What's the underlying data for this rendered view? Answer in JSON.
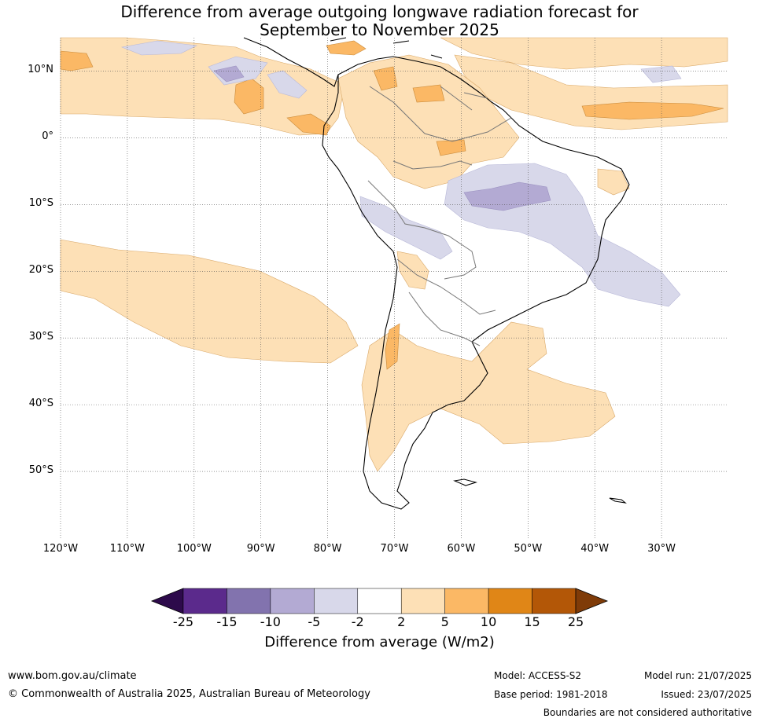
{
  "title": {
    "line1": "Difference from average outgoing longwave radiation forecast for",
    "line2": "September to November 2025"
  },
  "map": {
    "lon_range": [
      -120,
      -20
    ],
    "lat_range": [
      -60,
      15
    ],
    "lat_labels": [
      "10°N",
      "0°",
      "10°S",
      "20°S",
      "30°S",
      "40°S",
      "50°S"
    ],
    "lon_labels": [
      "120°W",
      "110°W",
      "100°W",
      "90°W",
      "80°W",
      "70°W",
      "60°W",
      "50°W",
      "40°W",
      "30°W"
    ],
    "gridlines": "dotted"
  },
  "colorbar": {
    "title": "Difference from average (W/m2)",
    "tick_labels": [
      "-25",
      "-15",
      "-10",
      "-5",
      "-2",
      "2",
      "5",
      "10",
      "15",
      "25"
    ],
    "colors": [
      "#2d0a4b",
      "#5b2a8c",
      "#8273ae",
      "#b3aad3",
      "#d8d8ea",
      "#ffffff",
      "#fde0b6",
      "#fbb865",
      "#e08617",
      "#b35707",
      "#7f3b08"
    ]
  },
  "footer": {
    "website": "www.bom.gov.au/climate",
    "copyright": "© Commonwealth of Australia 2025, Australian Bureau of Meteorology",
    "model": "Model: ACCESS-S2",
    "base_period": "Base period: 1981-2018",
    "model_run": "Model run: 21/07/2025",
    "issued": "Issued: 23/07/2025",
    "disclaimer": "Boundaries are not considered authoritative"
  }
}
